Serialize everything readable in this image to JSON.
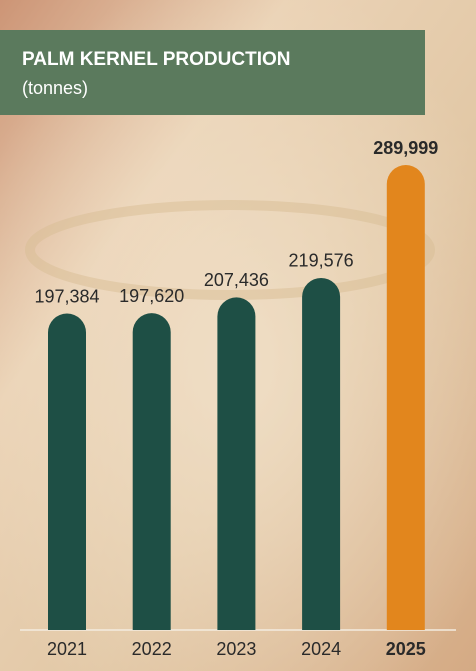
{
  "chart_data": {
    "type": "bar",
    "title": "PALM KERNEL PRODUCTION",
    "subtitle": "(tonnes)",
    "categories": [
      "2021",
      "2022",
      "2023",
      "2024",
      "2025"
    ],
    "values": [
      197384,
      197620,
      207436,
      219576,
      289999
    ],
    "value_labels": [
      "197,384",
      "197,620",
      "207,436",
      "219,576",
      "289,999"
    ],
    "colors": [
      "#1e4f45",
      "#1e4f45",
      "#1e4f45",
      "#1e4f45",
      "#e2861d"
    ]
  }
}
